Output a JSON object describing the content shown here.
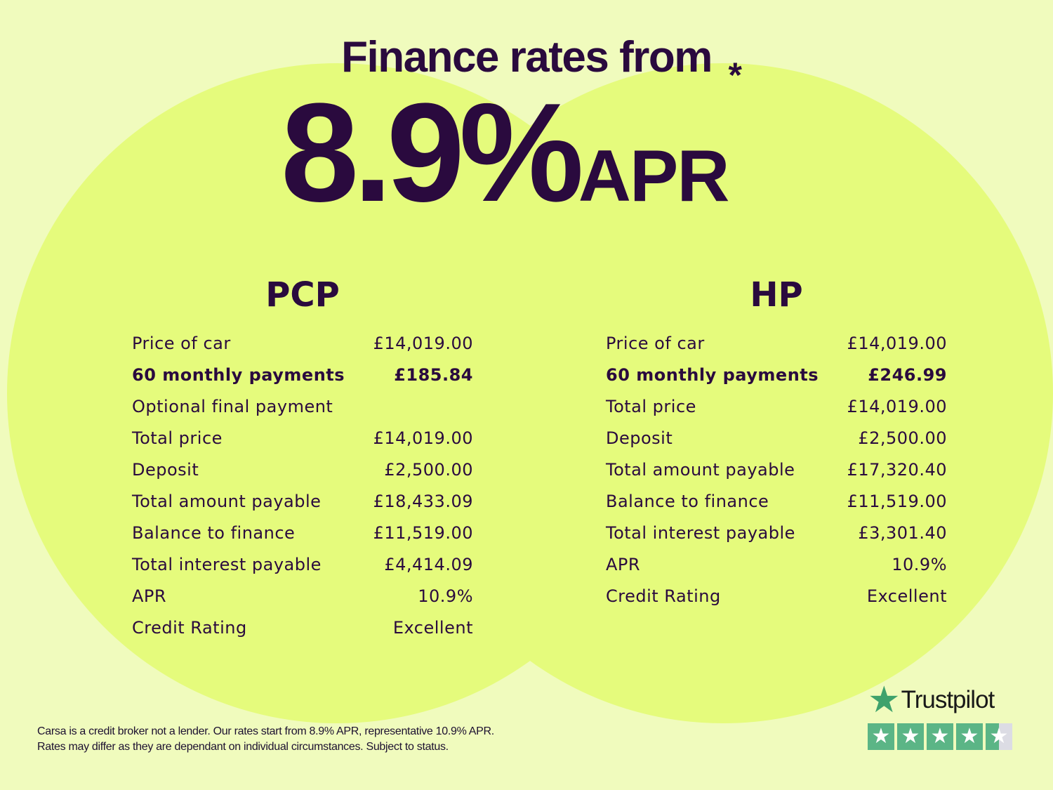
{
  "header": {
    "title": "Finance rates from",
    "rate": "8.9%",
    "rate_suffix": "APR",
    "asterisk": "*"
  },
  "pcp": {
    "title": "PCP",
    "rows": [
      {
        "label": "Price of car",
        "value": "£14,019.00"
      },
      {
        "label": "60 monthly payments",
        "value": "£185.84",
        "bold": true
      },
      {
        "label": "Optional final payment",
        "value": ""
      },
      {
        "label": "Total price",
        "value": "£14,019.00"
      },
      {
        "label": "Deposit",
        "value": "£2,500.00"
      },
      {
        "label": "Total amount payable",
        "value": "£18,433.09"
      },
      {
        "label": "Balance to finance",
        "value": "£11,519.00"
      },
      {
        "label": "Total interest payable",
        "value": "£4,414.09"
      },
      {
        "label": "APR",
        "value": "10.9%"
      },
      {
        "label": "Credit Rating",
        "value": "Excellent"
      }
    ]
  },
  "hp": {
    "title": "HP",
    "rows": [
      {
        "label": "Price of car",
        "value": "£14,019.00"
      },
      {
        "label": "60 monthly payments",
        "value": "£246.99",
        "bold": true
      },
      {
        "label": "Total price",
        "value": "£14,019.00"
      },
      {
        "label": "Deposit",
        "value": "£2,500.00"
      },
      {
        "label": "Total amount payable",
        "value": "£17,320.40"
      },
      {
        "label": "Balance to finance",
        "value": "£11,519.00"
      },
      {
        "label": "Total interest payable",
        "value": "£3,301.40"
      },
      {
        "label": "APR",
        "value": "10.9%"
      },
      {
        "label": "Credit Rating",
        "value": "Excellent"
      }
    ]
  },
  "footer": {
    "line1": "Carsa is a credit broker not a lender. Our rates start from 8.9% APR, representative 10.9% APR.",
    "line2": "Rates may differ as they are dependant on individual circumstances. Subject to status."
  },
  "trustpilot": {
    "name": "Trustpilot",
    "rating": 4.5,
    "max": 5,
    "icon": "star-icon"
  },
  "colors": {
    "background": "#f0fbbd",
    "circle": "#e5fb7c",
    "text": "#2a0a3e",
    "trustpilot_green": "#5bb586"
  }
}
